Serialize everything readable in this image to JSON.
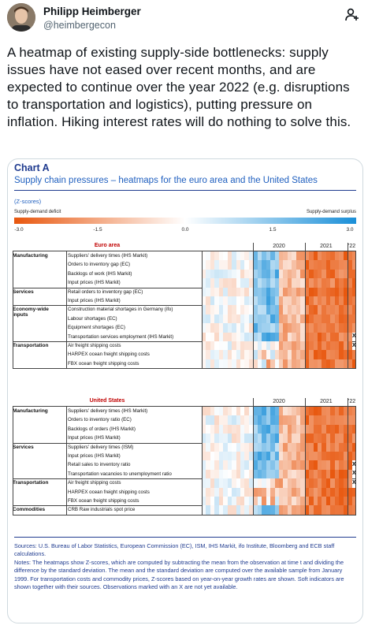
{
  "author": {
    "name": "Philipp Heimberger",
    "handle": "@heimbergecon"
  },
  "tweet_text": "A heatmap of existing supply-side bottlenecks: supply issues have not eased over recent months, and are expected to continue over the year 2022 (e.g. disruptions to transportation and logistics), putting pressure on inflation. Hiking interest rates will do nothing to solve this.",
  "icons": {
    "follow": "follow-add-icon",
    "avatar": "avatar"
  },
  "colors": {
    "deficit": "#e8570e",
    "neutral": "#ffffff",
    "surplus": "#1a8fd8",
    "chart_blue": "#1f3b8f"
  },
  "chart": {
    "label": "Chart A",
    "title": "Supply chain pressures – heatmaps for the euro area and the United States",
    "zscores": "(Z-scores)",
    "deficit_label": "Supply-demand deficit",
    "surplus_label": "Supply-demand surplus",
    "scale_ticks": [
      "-3.0",
      "-1.5",
      "0.0",
      "1.5",
      "3.0"
    ],
    "years": [
      "2020",
      "2021",
      "'22"
    ],
    "source": "Sources: U.S. Bureau of Labor Statistics, European Commission (EC), ISM, IHS Markit, ifo Institute, Bloomberg and ECB staff calculations.",
    "notes": "Notes: The heatmaps show Z-scores, which are computed by subtracting the mean from the observation at time t and dividing the difference by the standard deviation. The mean and the standard deviation are computed over the available sample from January 1999. For transportation costs and commodity prices, Z-scores based on year-on-year growth rates are shown. Soft indicators are shown together with their sources. Observations marked with an X are not yet available."
  },
  "chart_data": [
    {
      "type": "heatmap",
      "title": "Euro area",
      "scale": [
        -3.0,
        3.0
      ],
      "groups": [
        {
          "name": "Manufacturing",
          "rows": [
            "Suppliers' delivery times (IHS Markit)",
            "Orders to inventory gap (EC)",
            "Backlogs of work (IHS Markit)",
            "Input prices (IHS Markit)"
          ]
        },
        {
          "name": "Services",
          "rows": [
            "Retail orders to inventory gap (EC)",
            "Input prices (IHS Markit)"
          ]
        },
        {
          "name": "Economy-wide inputs",
          "rows": [
            "Construction material shortages in Germany (ifo)",
            "Labour shortages (EC)",
            "Equipment shortages (EC)",
            "Transportation services employment (IHS Markit)"
          ]
        },
        {
          "name": "Transportation",
          "rows": [
            "Air freight shipping costs",
            "HARPEX ocean freight shipping costs",
            "FBX ocean freight shipping costs"
          ]
        }
      ],
      "unavailable": [
        "Transportation services employment (IHS Markit)",
        "Air freight shipping costs"
      ]
    },
    {
      "type": "heatmap",
      "title": "United States",
      "scale": [
        -3.0,
        3.0
      ],
      "groups": [
        {
          "name": "Manufacturing",
          "rows": [
            "Suppliers' delivery times (IHS Markit)",
            "Orders to inventory ratio (EC)",
            "Backlogs of orders (IHS Markit)",
            "Input prices (IHS Markit)"
          ]
        },
        {
          "name": "Services",
          "rows": [
            "Suppliers' delivery times (ISM)",
            "Input prices (IHS Markit)",
            "Retail sales to inventory ratio",
            "Transportation vacancies to unemployment ratio"
          ]
        },
        {
          "name": "Transportation",
          "rows": [
            "Air freight shipping costs",
            "HARPEX ocean freight shipping costs",
            "FBX ocean freight shipping costs"
          ]
        },
        {
          "name": "Commodities",
          "rows": [
            "CRB Raw industrials spot price"
          ]
        }
      ],
      "unavailable": [
        "Retail sales to inventory ratio",
        "Transportation vacancies to unemployment ratio",
        "Air freight shipping costs"
      ]
    }
  ]
}
